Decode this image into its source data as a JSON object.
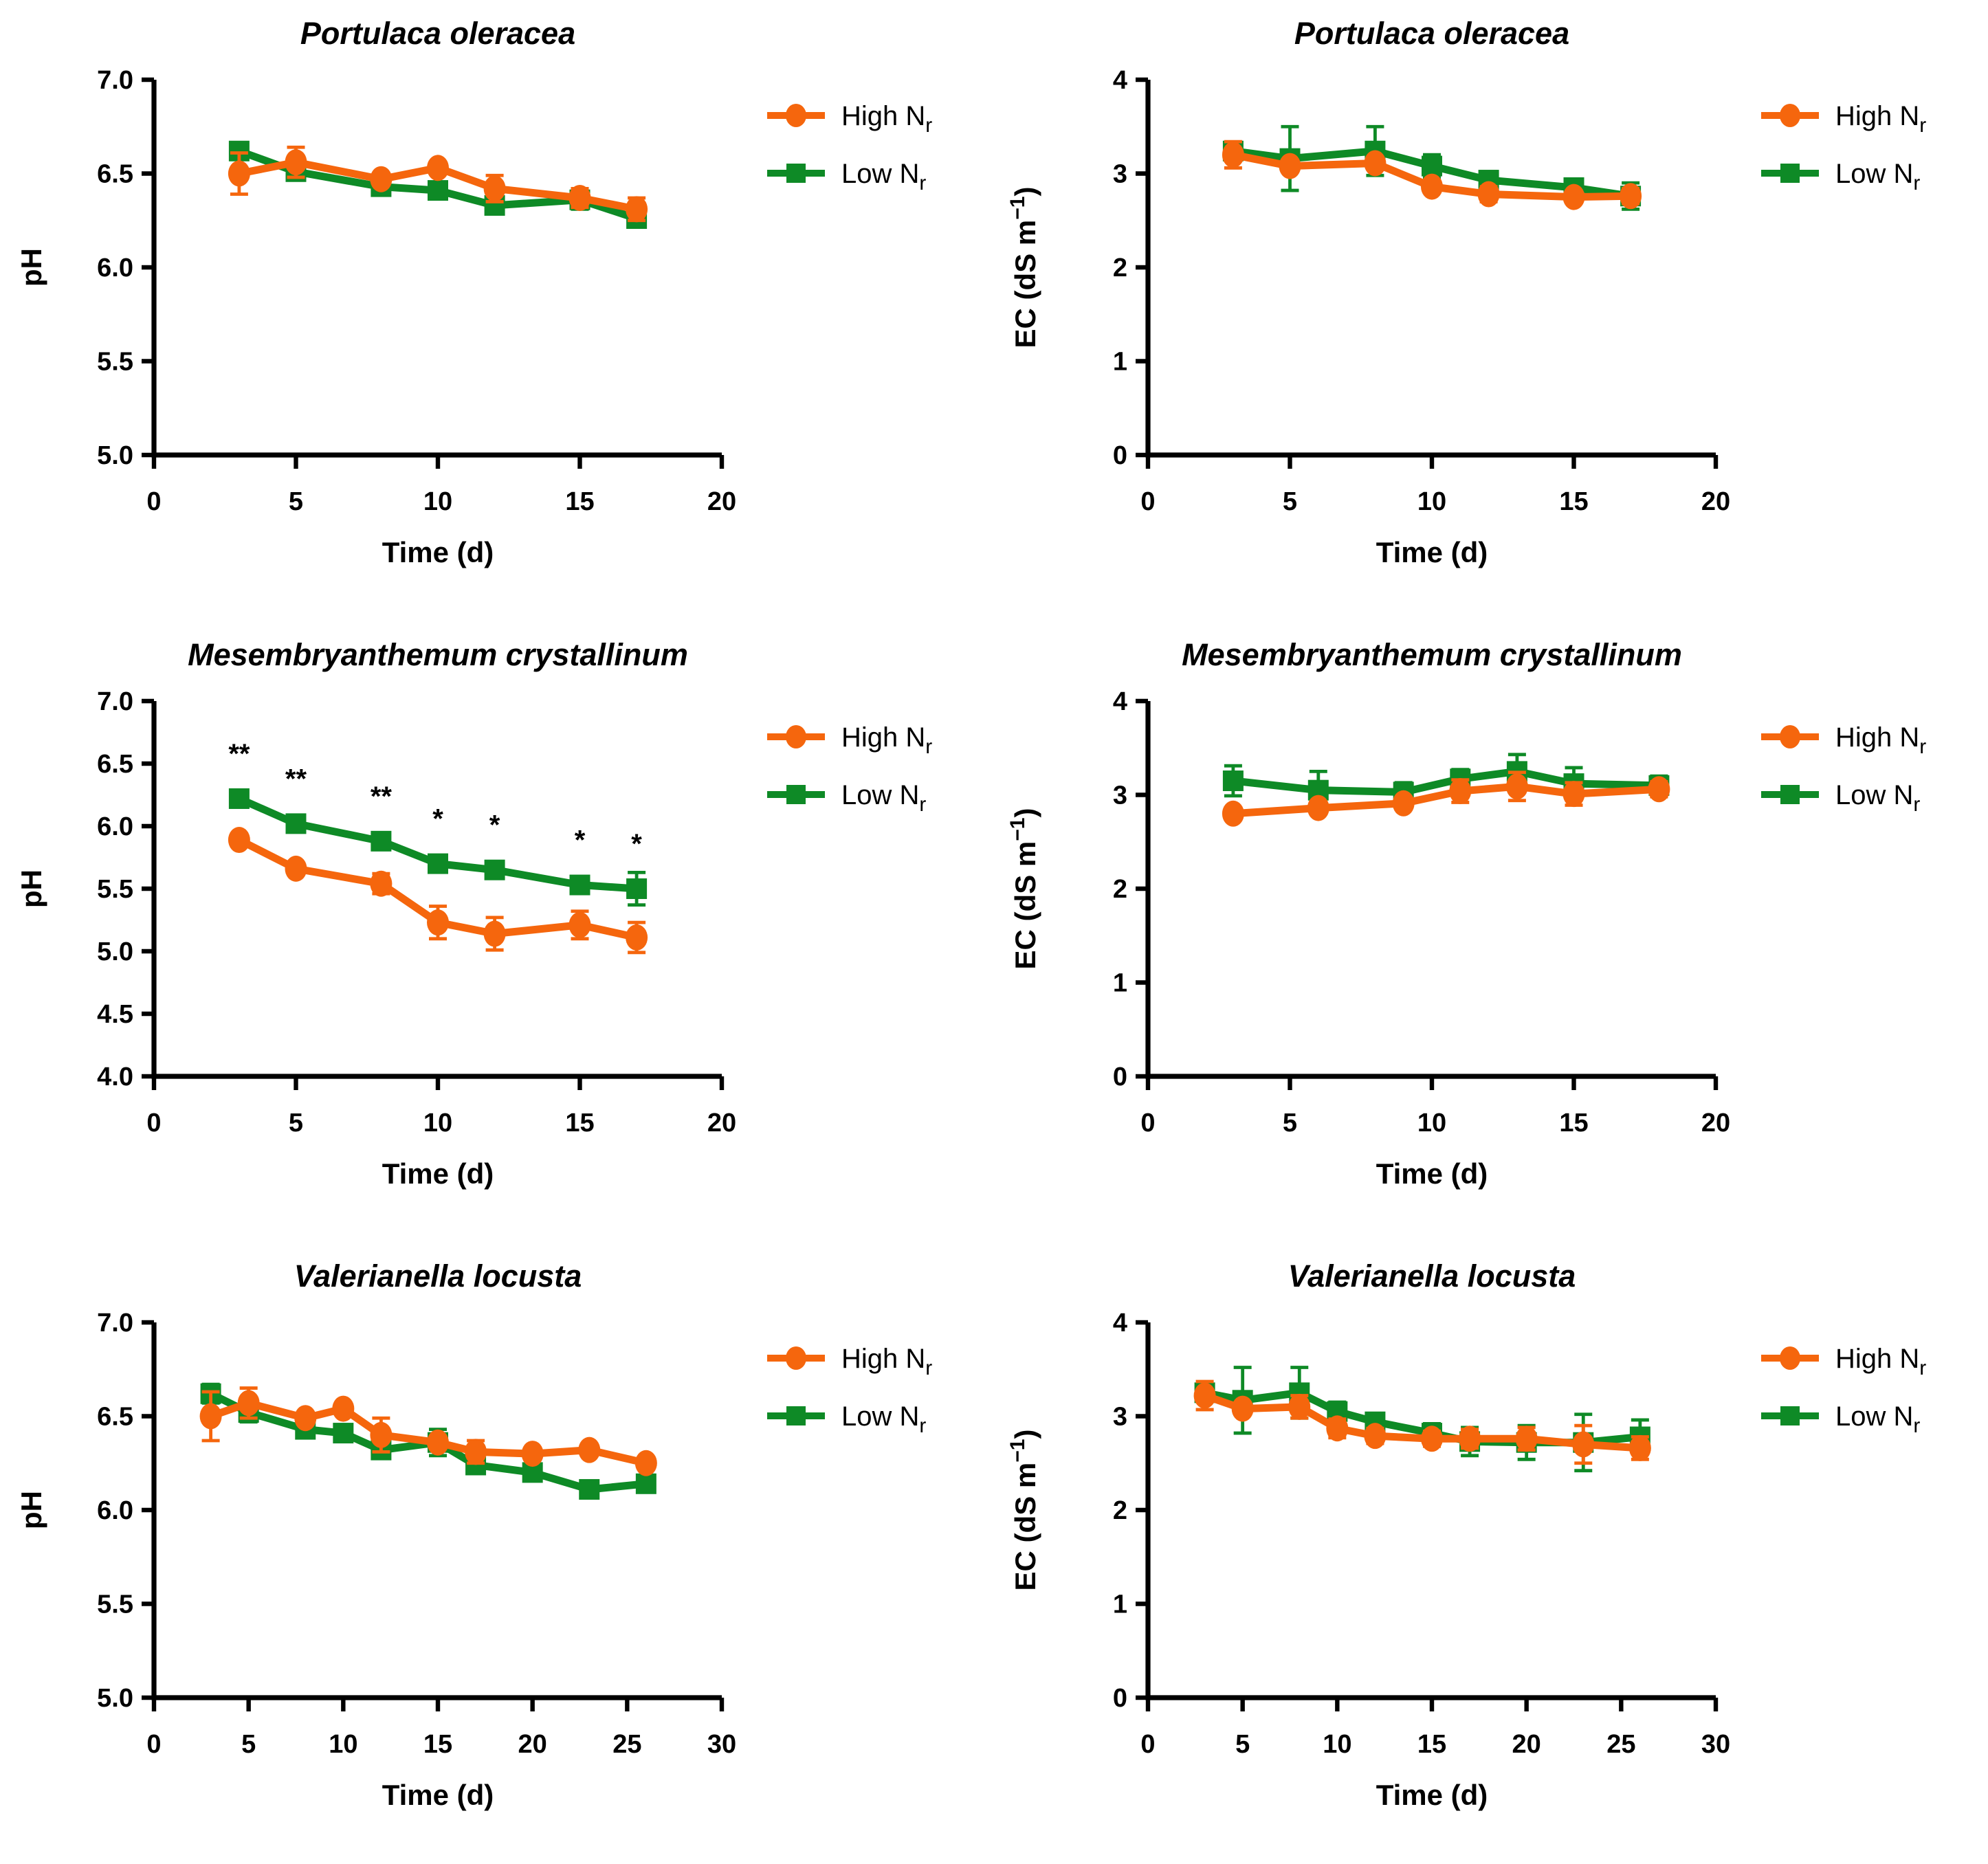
{
  "colors": {
    "high_nr": "#F5660D",
    "low_nr": "#0E8A26",
    "axis": "#000000",
    "background": "#FFFFFF"
  },
  "legend": {
    "items": [
      {
        "series": "high",
        "label_main": "High N",
        "label_sub": "r",
        "marker": "circle",
        "color": "#F5660D"
      },
      {
        "series": "low",
        "label_main": "Low N",
        "label_sub": "r",
        "marker": "square",
        "color": "#0E8A26"
      }
    ]
  },
  "chart_data": [
    {
      "id": "ph-portulaca",
      "type": "line",
      "title": "Portulaca oleracea",
      "xlabel": "Time (d)",
      "ylabel_parts": [
        {
          "t": "pH"
        }
      ],
      "xlim": [
        0,
        20
      ],
      "xticks": [
        0,
        5,
        10,
        15,
        20
      ],
      "ylim": [
        5,
        7
      ],
      "yticks": [
        5,
        5.5,
        6,
        6.5,
        7
      ],
      "ytick_decimals": 1,
      "grid": false,
      "legend_position": "right-top",
      "x": [
        3,
        5,
        8,
        10,
        12,
        15,
        17
      ],
      "series": [
        {
          "name": "High Nr",
          "key": "high",
          "marker": "circle",
          "color": "#F5660D",
          "values": [
            6.5,
            6.56,
            6.47,
            6.53,
            6.42,
            6.37,
            6.31
          ],
          "errors": [
            0.11,
            0.08,
            0.03,
            0.03,
            0.07,
            0.05,
            0.06
          ]
        },
        {
          "name": "Low Nr",
          "key": "low",
          "marker": "square",
          "color": "#0E8A26",
          "values": [
            6.62,
            6.51,
            6.43,
            6.41,
            6.33,
            6.36,
            6.26
          ],
          "errors": [
            0.04,
            0.03,
            0.03,
            0.03,
            0.04,
            0.05,
            0.04
          ]
        }
      ]
    },
    {
      "id": "ec-portulaca",
      "type": "line",
      "title": "Portulaca oleracea",
      "xlabel": "Time (d)",
      "ylabel_parts": [
        {
          "t": "EC (dS m"
        },
        {
          "t": "−1",
          "sup": true
        },
        {
          "t": ")"
        }
      ],
      "xlim": [
        0,
        20
      ],
      "xticks": [
        0,
        5,
        10,
        15,
        20
      ],
      "ylim": [
        0,
        4
      ],
      "yticks": [
        0,
        1,
        2,
        3,
        4
      ],
      "ytick_decimals": 0,
      "grid": false,
      "legend_position": "right-top",
      "x": [
        3,
        5,
        8,
        10,
        12,
        15,
        17
      ],
      "series": [
        {
          "name": "High Nr",
          "key": "high",
          "marker": "circle",
          "color": "#F5660D",
          "values": [
            3.2,
            3.08,
            3.11,
            2.86,
            2.78,
            2.75,
            2.76
          ],
          "errors": [
            0.14,
            0.05,
            0.06,
            0.06,
            0.08,
            0.04,
            0.08
          ]
        },
        {
          "name": "Low Nr",
          "key": "low",
          "marker": "square",
          "color": "#0E8A26",
          "values": [
            3.24,
            3.16,
            3.24,
            3.08,
            2.93,
            2.85,
            2.76
          ],
          "errors": [
            0.06,
            0.34,
            0.26,
            0.12,
            0.09,
            0.06,
            0.14
          ]
        }
      ]
    },
    {
      "id": "ph-mesembryanthemum",
      "type": "line",
      "title": "Mesembryanthemum crystallinum",
      "xlabel": "Time (d)",
      "ylabel_parts": [
        {
          "t": "pH"
        }
      ],
      "xlim": [
        0,
        20
      ],
      "xticks": [
        0,
        5,
        10,
        15,
        20
      ],
      "ylim": [
        4,
        7
      ],
      "yticks": [
        4,
        4.5,
        5,
        5.5,
        6,
        6.5,
        7
      ],
      "ytick_decimals": 1,
      "grid": false,
      "legend_position": "right-top",
      "x": [
        3,
        5,
        8,
        10,
        12,
        15,
        17
      ],
      "sig_labels": [
        "**",
        "**",
        "**",
        "*",
        "*",
        "*",
        "*"
      ],
      "sig_series": "low",
      "series": [
        {
          "name": "High Nr",
          "key": "high",
          "marker": "circle",
          "color": "#F5660D",
          "values": [
            5.89,
            5.66,
            5.54,
            5.23,
            5.14,
            5.21,
            5.11
          ],
          "errors": [
            0.05,
            0.04,
            0.08,
            0.13,
            0.13,
            0.11,
            0.12
          ]
        },
        {
          "name": "Low Nr",
          "key": "low",
          "marker": "square",
          "color": "#0E8A26",
          "values": [
            6.22,
            6.02,
            5.88,
            5.7,
            5.65,
            5.53,
            5.5
          ],
          "errors": [
            0.04,
            0.06,
            0.04,
            0.04,
            0.04,
            0.06,
            0.13
          ]
        }
      ]
    },
    {
      "id": "ec-mesembryanthemum",
      "type": "line",
      "title": "Mesembryanthemum crystallinum",
      "xlabel": "Time (d)",
      "ylabel_parts": [
        {
          "t": "EC (dS m"
        },
        {
          "t": "−1",
          "sup": true
        },
        {
          "t": ")"
        }
      ],
      "xlim": [
        0,
        20
      ],
      "xticks": [
        0,
        5,
        10,
        15,
        20
      ],
      "ylim": [
        0,
        4
      ],
      "yticks": [
        0,
        1,
        2,
        3,
        4
      ],
      "ytick_decimals": 0,
      "grid": false,
      "legend_position": "right-top",
      "x": [
        3,
        6,
        9,
        11,
        13,
        15,
        18
      ],
      "series": [
        {
          "name": "High Nr",
          "key": "high",
          "marker": "circle",
          "color": "#F5660D",
          "values": [
            2.8,
            2.86,
            2.91,
            3.04,
            3.09,
            3.01,
            3.06
          ],
          "errors": [
            0.03,
            0.03,
            0.04,
            0.12,
            0.15,
            0.12,
            0.08
          ]
        },
        {
          "name": "Low Nr",
          "key": "low",
          "marker": "square",
          "color": "#0E8A26",
          "values": [
            3.15,
            3.05,
            3.03,
            3.17,
            3.25,
            3.12,
            3.1
          ],
          "errors": [
            0.16,
            0.2,
            0.1,
            0.1,
            0.18,
            0.17,
            0.1
          ]
        }
      ]
    },
    {
      "id": "ph-valerianella",
      "type": "line",
      "title": "Valerianella locusta",
      "xlabel": "Time (d)",
      "ylabel_parts": [
        {
          "t": "pH"
        }
      ],
      "xlim": [
        0,
        30
      ],
      "xticks": [
        0,
        5,
        10,
        15,
        20,
        25,
        30
      ],
      "ylim": [
        5,
        7
      ],
      "yticks": [
        5,
        5.5,
        6,
        6.5,
        7
      ],
      "ytick_decimals": 1,
      "grid": false,
      "legend_position": "right-top",
      "x": [
        3,
        5,
        8,
        10,
        12,
        15,
        17,
        20,
        23,
        26
      ],
      "series": [
        {
          "name": "High Nr",
          "key": "high",
          "marker": "circle",
          "color": "#F5660D",
          "values": [
            6.5,
            6.57,
            6.49,
            6.54,
            6.4,
            6.36,
            6.31,
            6.3,
            6.32,
            6.25
          ],
          "errors": [
            0.13,
            0.08,
            0.03,
            0.03,
            0.09,
            0.03,
            0.06,
            0.03,
            0.03,
            0.03
          ]
        },
        {
          "name": "Low Nr",
          "key": "low",
          "marker": "square",
          "color": "#0E8A26",
          "values": [
            6.62,
            6.52,
            6.43,
            6.41,
            6.32,
            6.36,
            6.24,
            6.2,
            6.11,
            6.14
          ],
          "errors": [
            0.05,
            0.05,
            0.03,
            0.03,
            0.03,
            0.07,
            0.03,
            0.03,
            0.03,
            0.03
          ]
        }
      ]
    },
    {
      "id": "ec-valerianella",
      "type": "line",
      "title": "Valerianella locusta",
      "xlabel": "Time (d)",
      "ylabel_parts": [
        {
          "t": "EC (dS m"
        },
        {
          "t": "−1",
          "sup": true
        },
        {
          "t": ")"
        }
      ],
      "xlim": [
        0,
        30
      ],
      "xticks": [
        0,
        5,
        10,
        15,
        20,
        25,
        30
      ],
      "ylim": [
        0,
        4
      ],
      "yticks": [
        0,
        1,
        2,
        3,
        4
      ],
      "ytick_decimals": 0,
      "grid": false,
      "legend_position": "right-top",
      "x": [
        3,
        5,
        8,
        10,
        12,
        15,
        17,
        20,
        23,
        26
      ],
      "series": [
        {
          "name": "High Nr",
          "key": "high",
          "marker": "circle",
          "color": "#F5660D",
          "values": [
            3.22,
            3.08,
            3.1,
            2.87,
            2.79,
            2.76,
            2.76,
            2.76,
            2.7,
            2.66
          ],
          "errors": [
            0.15,
            0.06,
            0.12,
            0.1,
            0.08,
            0.08,
            0.1,
            0.12,
            0.2,
            0.12
          ]
        },
        {
          "name": "Low Nr",
          "key": "low",
          "marker": "square",
          "color": "#0E8A26",
          "values": [
            3.25,
            3.17,
            3.25,
            3.05,
            2.94,
            2.82,
            2.73,
            2.72,
            2.72,
            2.78
          ],
          "errors": [
            0.08,
            0.35,
            0.27,
            0.1,
            0.08,
            0.1,
            0.15,
            0.18,
            0.3,
            0.18
          ]
        }
      ]
    }
  ]
}
